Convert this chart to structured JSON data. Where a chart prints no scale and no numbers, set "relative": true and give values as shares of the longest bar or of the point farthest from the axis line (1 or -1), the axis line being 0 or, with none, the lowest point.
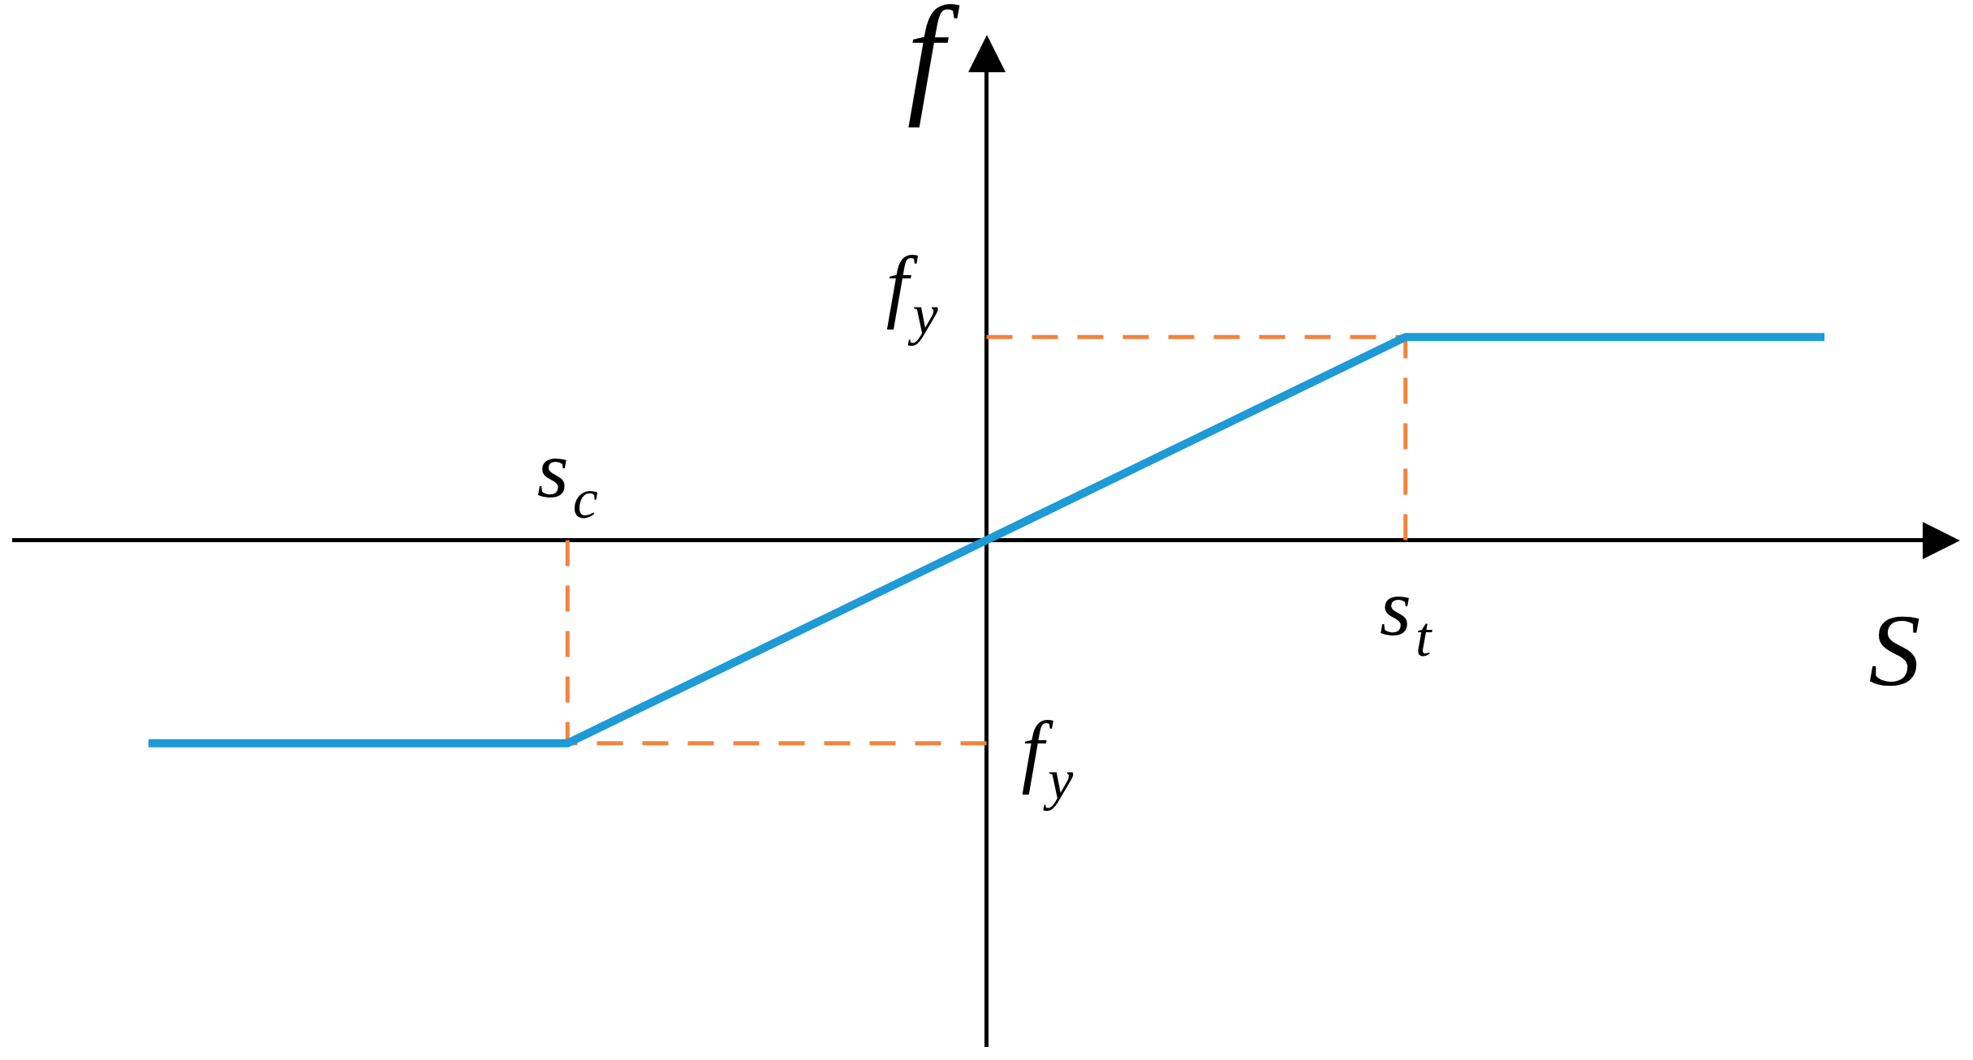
{
  "chart_data": {
    "type": "line",
    "relative": true,
    "xlabel": "S",
    "ylabel": "f",
    "categories": [
      null,
      "s$_{c}$",
      null,
      "s$_{t}$",
      null
    ],
    "values": [
      -1,
      -1,
      0,
      1,
      1
    ],
    "color": "#1e9ad6",
    "ref_lines": [
      {
        "axis": "y",
        "value": 1,
        "label": "f$_{y}$",
        "color": "#f4823a",
        "line_style": "dashed"
      },
      {
        "axis": "y",
        "value": -1,
        "label": "f$_{y}$",
        "color": "#f4823a",
        "line_style": "dashed"
      },
      {
        "axis": "x",
        "value": "s$_{c}$",
        "color": "#f4823a",
        "line_style": "dashed"
      },
      {
        "axis": "x",
        "value": "s$_{t}$",
        "color": "#f4823a",
        "line_style": "dashed"
      }
    ]
  }
}
